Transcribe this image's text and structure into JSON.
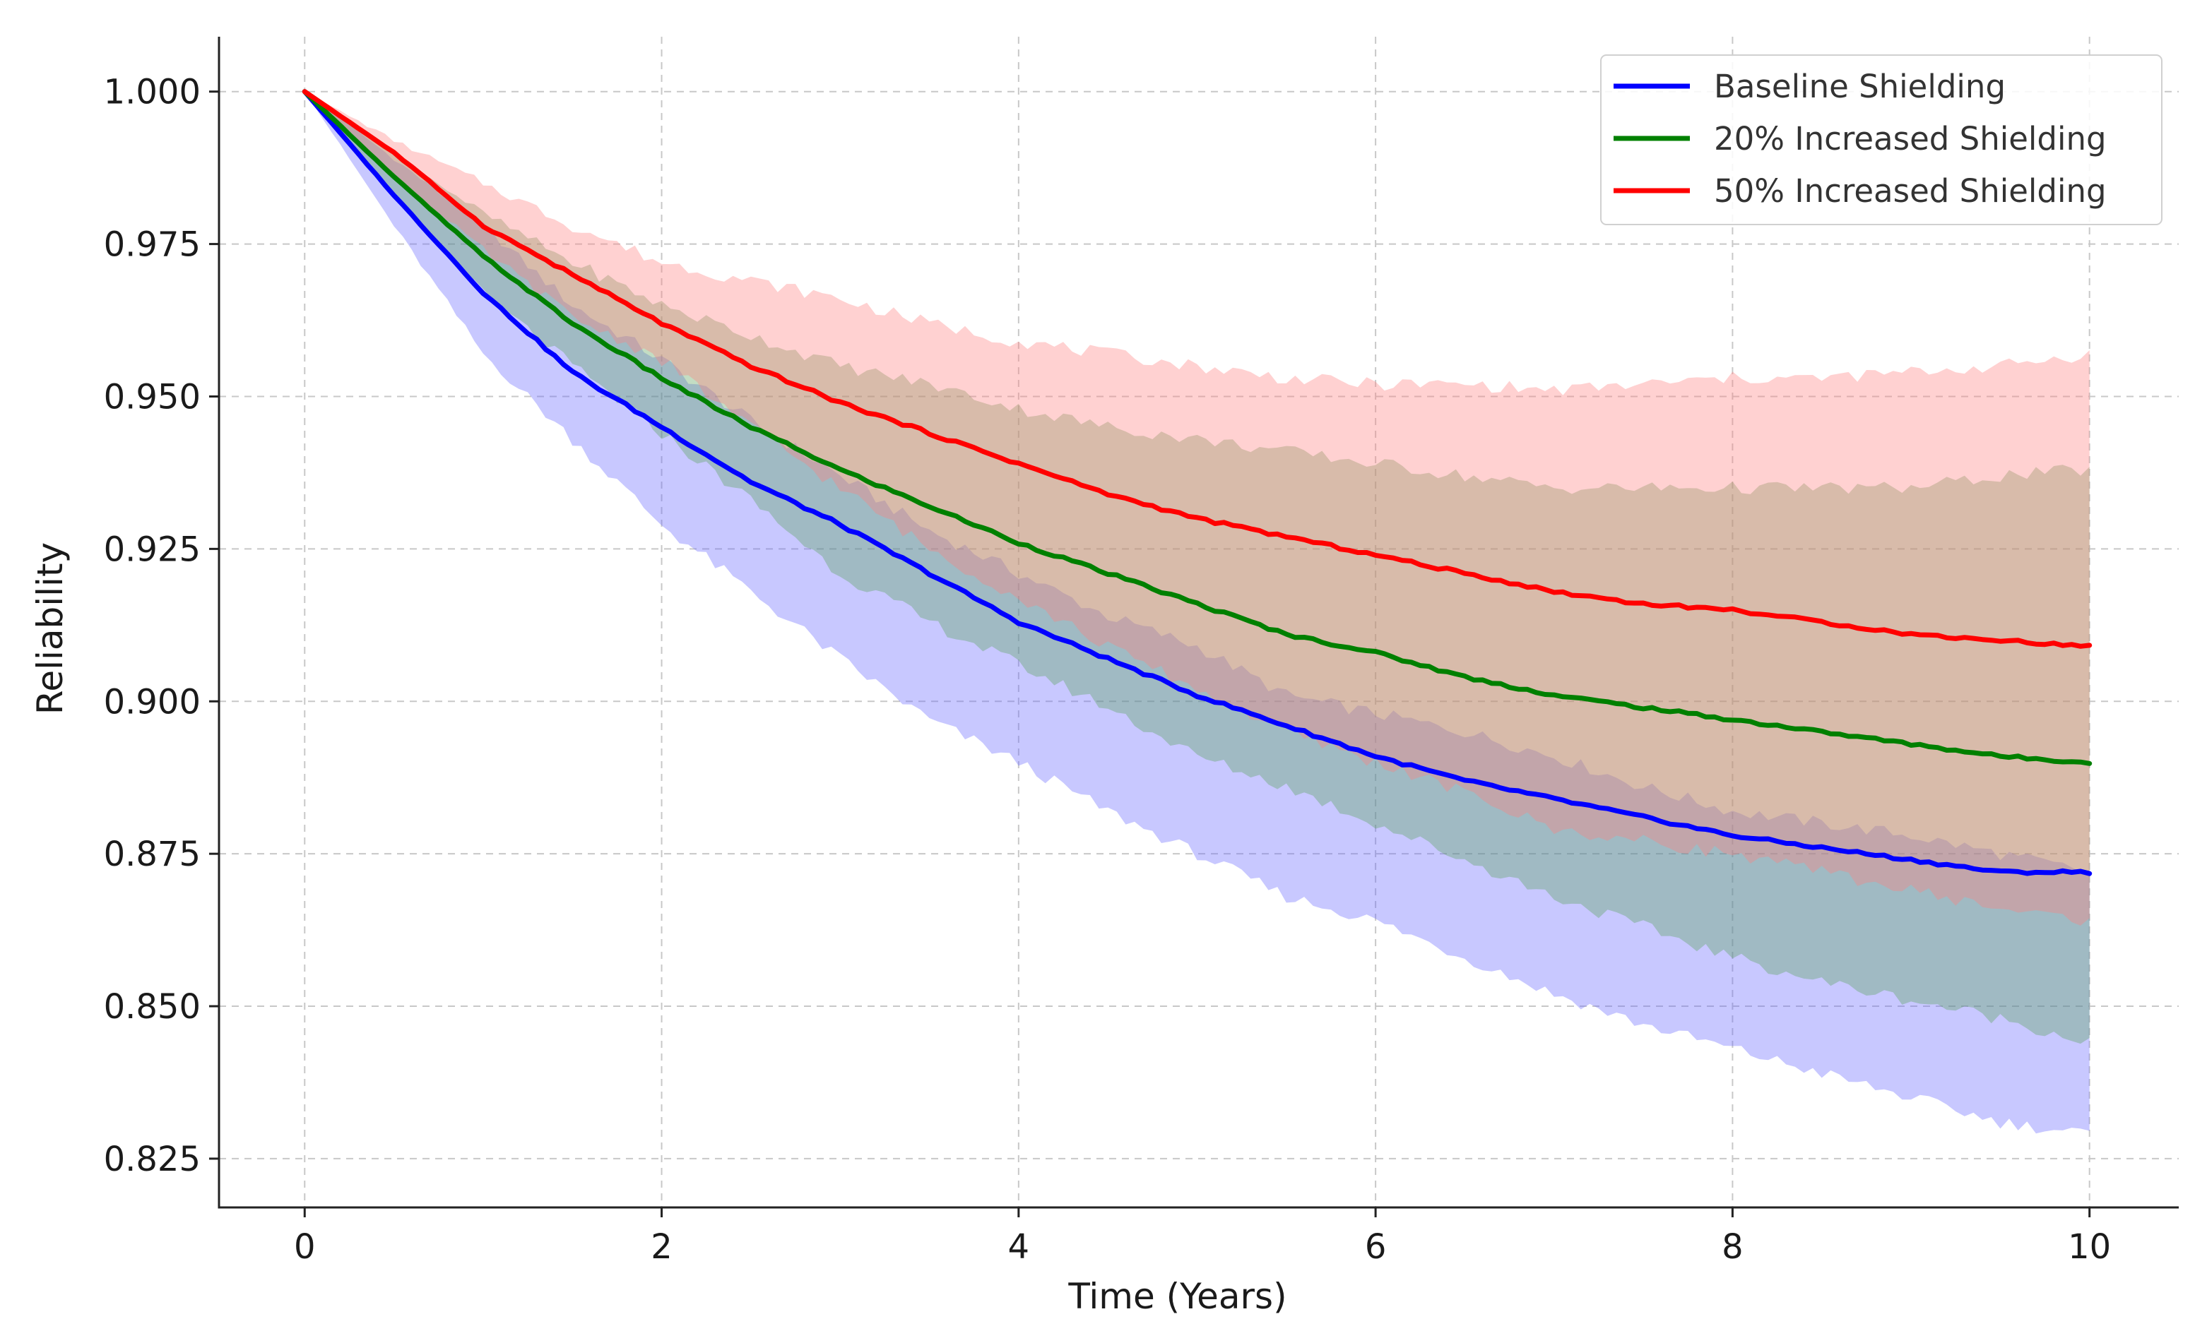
{
  "chart_data": {
    "type": "line",
    "title": "",
    "xlabel": "Time (Years)",
    "ylabel": "Reliability",
    "xlim": [
      -0.48,
      10.5
    ],
    "ylim": [
      0.817,
      1.009
    ],
    "xticks": [
      0,
      2,
      4,
      6,
      8,
      10
    ],
    "xtick_labels": [
      "0",
      "2",
      "4",
      "6",
      "8",
      "10"
    ],
    "yticks": [
      0.825,
      0.85,
      0.875,
      0.9,
      0.925,
      0.95,
      0.975,
      1.0
    ],
    "ytick_labels": [
      "0.825",
      "0.850",
      "0.875",
      "0.900",
      "0.925",
      "0.950",
      "0.975",
      "1.000"
    ],
    "grid": true,
    "legend_position": "top-right",
    "x": [
      0,
      0.5,
      1,
      1.5,
      2,
      2.5,
      3,
      3.5,
      4,
      4.5,
      5,
      5.5,
      6,
      6.5,
      7,
      7.5,
      8,
      8.5,
      9,
      9.5,
      10
    ],
    "series": [
      {
        "name": "Baseline Shielding",
        "color": "#0000ff",
        "band_color": "#6666ff",
        "values": [
          1.0,
          0.983,
          0.967,
          0.954,
          0.945,
          0.936,
          0.929,
          0.921,
          0.913,
          0.907,
          0.901,
          0.896,
          0.891,
          0.887,
          0.884,
          0.881,
          0.878,
          0.876,
          0.874,
          0.872,
          0.872
        ],
        "lower": [
          1.0,
          0.978,
          0.957,
          0.943,
          0.929,
          0.918,
          0.907,
          0.897,
          0.89,
          0.882,
          0.875,
          0.868,
          0.864,
          0.858,
          0.852,
          0.847,
          0.843,
          0.839,
          0.835,
          0.831,
          0.829
        ],
        "upper": [
          1.0,
          0.989,
          0.978,
          0.965,
          0.956,
          0.946,
          0.937,
          0.928,
          0.921,
          0.914,
          0.909,
          0.901,
          0.898,
          0.895,
          0.891,
          0.886,
          0.882,
          0.88,
          0.878,
          0.875,
          0.872
        ]
      },
      {
        "name": "20% Increased Shielding",
        "color": "#008000",
        "band_color": "#5aa05a",
        "values": [
          1.0,
          0.986,
          0.973,
          0.962,
          0.953,
          0.945,
          0.938,
          0.932,
          0.926,
          0.921,
          0.916,
          0.911,
          0.908,
          0.904,
          0.901,
          0.899,
          0.897,
          0.895,
          0.893,
          0.891,
          0.89
        ],
        "lower": [
          1.0,
          0.983,
          0.967,
          0.955,
          0.944,
          0.933,
          0.921,
          0.913,
          0.906,
          0.899,
          0.891,
          0.886,
          0.88,
          0.874,
          0.868,
          0.863,
          0.858,
          0.854,
          0.851,
          0.848,
          0.844
        ],
        "upper": [
          1.0,
          0.99,
          0.98,
          0.972,
          0.965,
          0.96,
          0.955,
          0.952,
          0.948,
          0.945,
          0.943,
          0.941,
          0.939,
          0.937,
          0.935,
          0.935,
          0.935,
          0.935,
          0.935,
          0.937,
          0.938
        ]
      },
      {
        "name": "50% Increased Shielding",
        "color": "#ff0000",
        "band_color": "#ff8080",
        "values": [
          1.0,
          0.99,
          0.978,
          0.97,
          0.962,
          0.955,
          0.949,
          0.944,
          0.939,
          0.934,
          0.93,
          0.927,
          0.924,
          0.921,
          0.918,
          0.916,
          0.915,
          0.913,
          0.911,
          0.91,
          0.909
        ],
        "lower": [
          1.0,
          0.986,
          0.974,
          0.963,
          0.956,
          0.945,
          0.935,
          0.925,
          0.917,
          0.909,
          0.902,
          0.895,
          0.89,
          0.885,
          0.879,
          0.877,
          0.875,
          0.872,
          0.869,
          0.866,
          0.864
        ],
        "upper": [
          1.0,
          0.992,
          0.985,
          0.978,
          0.972,
          0.969,
          0.966,
          0.962,
          0.959,
          0.957,
          0.955,
          0.953,
          0.952,
          0.952,
          0.951,
          0.952,
          0.953,
          0.953,
          0.954,
          0.955,
          0.957
        ]
      }
    ]
  }
}
